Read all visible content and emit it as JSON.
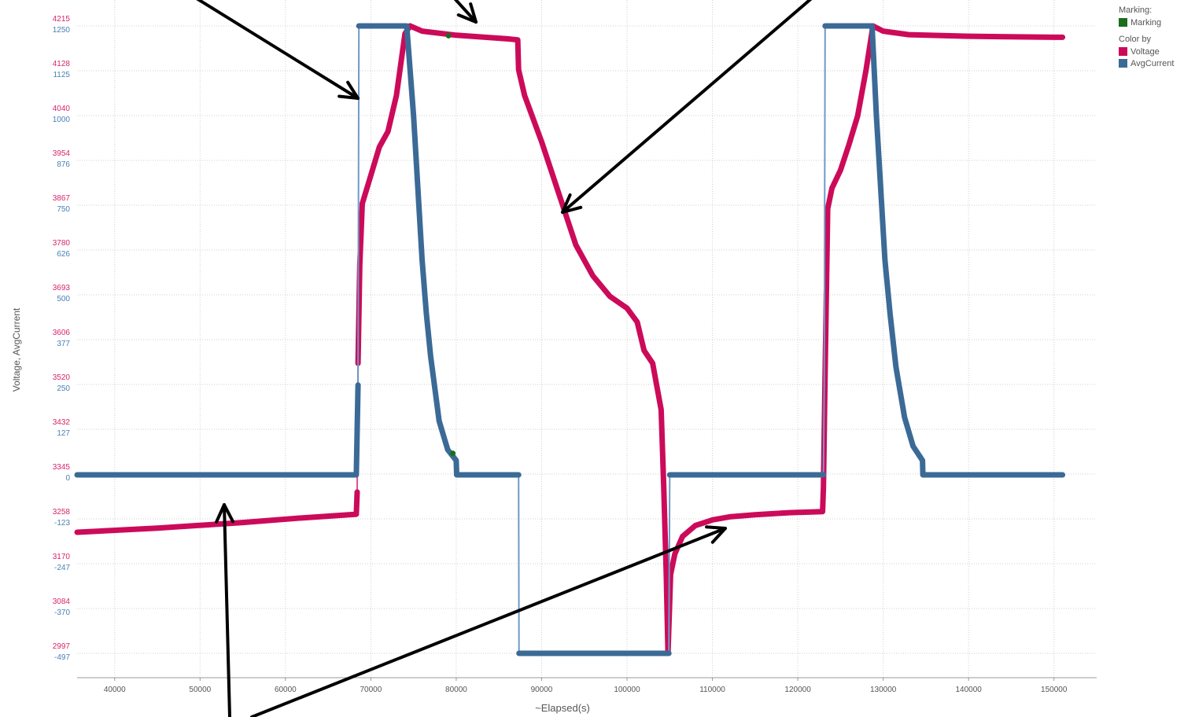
{
  "chart_data": {
    "type": "line",
    "title": "",
    "xlabel": "~Elapsed(s)",
    "ylabel": "Voltage, AvgCurrent",
    "xlim": [
      35600,
      155000
    ],
    "x_ticks": [
      "40000",
      "50000",
      "60000",
      "70000",
      "80000",
      "90000",
      "100000",
      "110000",
      "120000",
      "130000",
      "140000",
      "150000"
    ],
    "y_ticks_voltage": [
      "4215",
      "4128",
      "4040",
      "3954",
      "3867",
      "3780",
      "3693",
      "3606",
      "3520",
      "3432",
      "3345",
      "3258",
      "3170",
      "3084",
      "2997"
    ],
    "y_ticks_current": [
      "1250",
      "1125",
      "1000",
      "876",
      "750",
      "626",
      "500",
      "377",
      "250",
      "127",
      "0",
      "-123",
      "-247",
      "-370",
      "-497"
    ],
    "voltage_range": [
      2909,
      4215
    ],
    "current_range": [
      -620,
      1250
    ],
    "grid": true,
    "legend_position": "top-right",
    "marking_label": "Marking:",
    "marking_entry": "Marking",
    "colorby_label": "Color by",
    "series": [
      {
        "name": "Voltage",
        "color": "#cc0a5a",
        "axis": "voltage",
        "points": [
          [
            35600,
            3232
          ],
          [
            45000,
            3240
          ],
          [
            55000,
            3251
          ],
          [
            62000,
            3260
          ],
          [
            68300,
            3267
          ],
          [
            68400,
            3310
          ],
          [
            68500,
            3560
          ],
          [
            68700,
            3750
          ],
          [
            69000,
            3870
          ],
          [
            70000,
            3925
          ],
          [
            71000,
            3980
          ],
          [
            72000,
            4010
          ],
          [
            73000,
            4080
          ],
          [
            74000,
            4200
          ],
          [
            74600,
            4215
          ],
          [
            76000,
            4205
          ],
          [
            80000,
            4197
          ],
          [
            86000,
            4190
          ],
          [
            87200,
            4188
          ],
          [
            87300,
            4130
          ],
          [
            88000,
            4080
          ],
          [
            90000,
            3990
          ],
          [
            92000,
            3890
          ],
          [
            94000,
            3790
          ],
          [
            96000,
            3730
          ],
          [
            98000,
            3690
          ],
          [
            100000,
            3667
          ],
          [
            101200,
            3640
          ],
          [
            102000,
            3585
          ],
          [
            103000,
            3560
          ],
          [
            104000,
            3470
          ],
          [
            104300,
            3320
          ],
          [
            104600,
            3150
          ],
          [
            104800,
            2997
          ],
          [
            105100,
            3150
          ],
          [
            105600,
            3190
          ],
          [
            106500,
            3224
          ],
          [
            108000,
            3245
          ],
          [
            110000,
            3256
          ],
          [
            112000,
            3262
          ],
          [
            115000,
            3266
          ],
          [
            119000,
            3270
          ],
          [
            122900,
            3272
          ],
          [
            123000,
            3320
          ],
          [
            123200,
            3540
          ],
          [
            123500,
            3860
          ],
          [
            124000,
            3900
          ],
          [
            125000,
            3935
          ],
          [
            126000,
            3985
          ],
          [
            127000,
            4040
          ],
          [
            128000,
            4130
          ],
          [
            128800,
            4215
          ],
          [
            130000,
            4205
          ],
          [
            133000,
            4198
          ],
          [
            140000,
            4195
          ],
          [
            150000,
            4193
          ],
          [
            151000,
            4193
          ]
        ]
      },
      {
        "name": "AvgCurrent",
        "color": "#3b6a96",
        "axis": "current",
        "points": [
          [
            35600,
            0
          ],
          [
            68300,
            0
          ],
          [
            68500,
            250
          ],
          [
            68600,
            1250
          ],
          [
            74200,
            1250
          ],
          [
            75000,
            1000
          ],
          [
            75500,
            800
          ],
          [
            76000,
            600
          ],
          [
            76500,
            450
          ],
          [
            77000,
            330
          ],
          [
            78000,
            150
          ],
          [
            79000,
            70
          ],
          [
            80000,
            40
          ],
          [
            80050,
            0
          ],
          [
            87300,
            0
          ],
          [
            87350,
            -497
          ],
          [
            104900,
            -497
          ],
          [
            105000,
            0
          ],
          [
            123000,
            0
          ],
          [
            123100,
            260
          ],
          [
            123200,
            1250
          ],
          [
            128700,
            1250
          ],
          [
            129200,
            1000
          ],
          [
            129700,
            800
          ],
          [
            130200,
            600
          ],
          [
            130800,
            450
          ],
          [
            131500,
            300
          ],
          [
            132500,
            160
          ],
          [
            133500,
            80
          ],
          [
            134600,
            40
          ],
          [
            134650,
            0
          ],
          [
            151000,
            0
          ]
        ]
      }
    ],
    "markings": [
      [
        79100,
        4196
      ],
      [
        79600,
        60
      ]
    ]
  },
  "arrows": [
    {
      "from": [
        245,
        -5
      ],
      "to": [
        455,
        125
      ]
    },
    {
      "from": [
        575,
        -5
      ],
      "to": [
        605,
        28
      ]
    },
    {
      "from": [
        1035,
        -5
      ],
      "to": [
        715,
        270
      ]
    },
    {
      "from": [
        292,
        912
      ],
      "to": [
        285,
        642
      ]
    },
    {
      "from": [
        320,
        912
      ],
      "to": [
        922,
        672
      ]
    }
  ]
}
